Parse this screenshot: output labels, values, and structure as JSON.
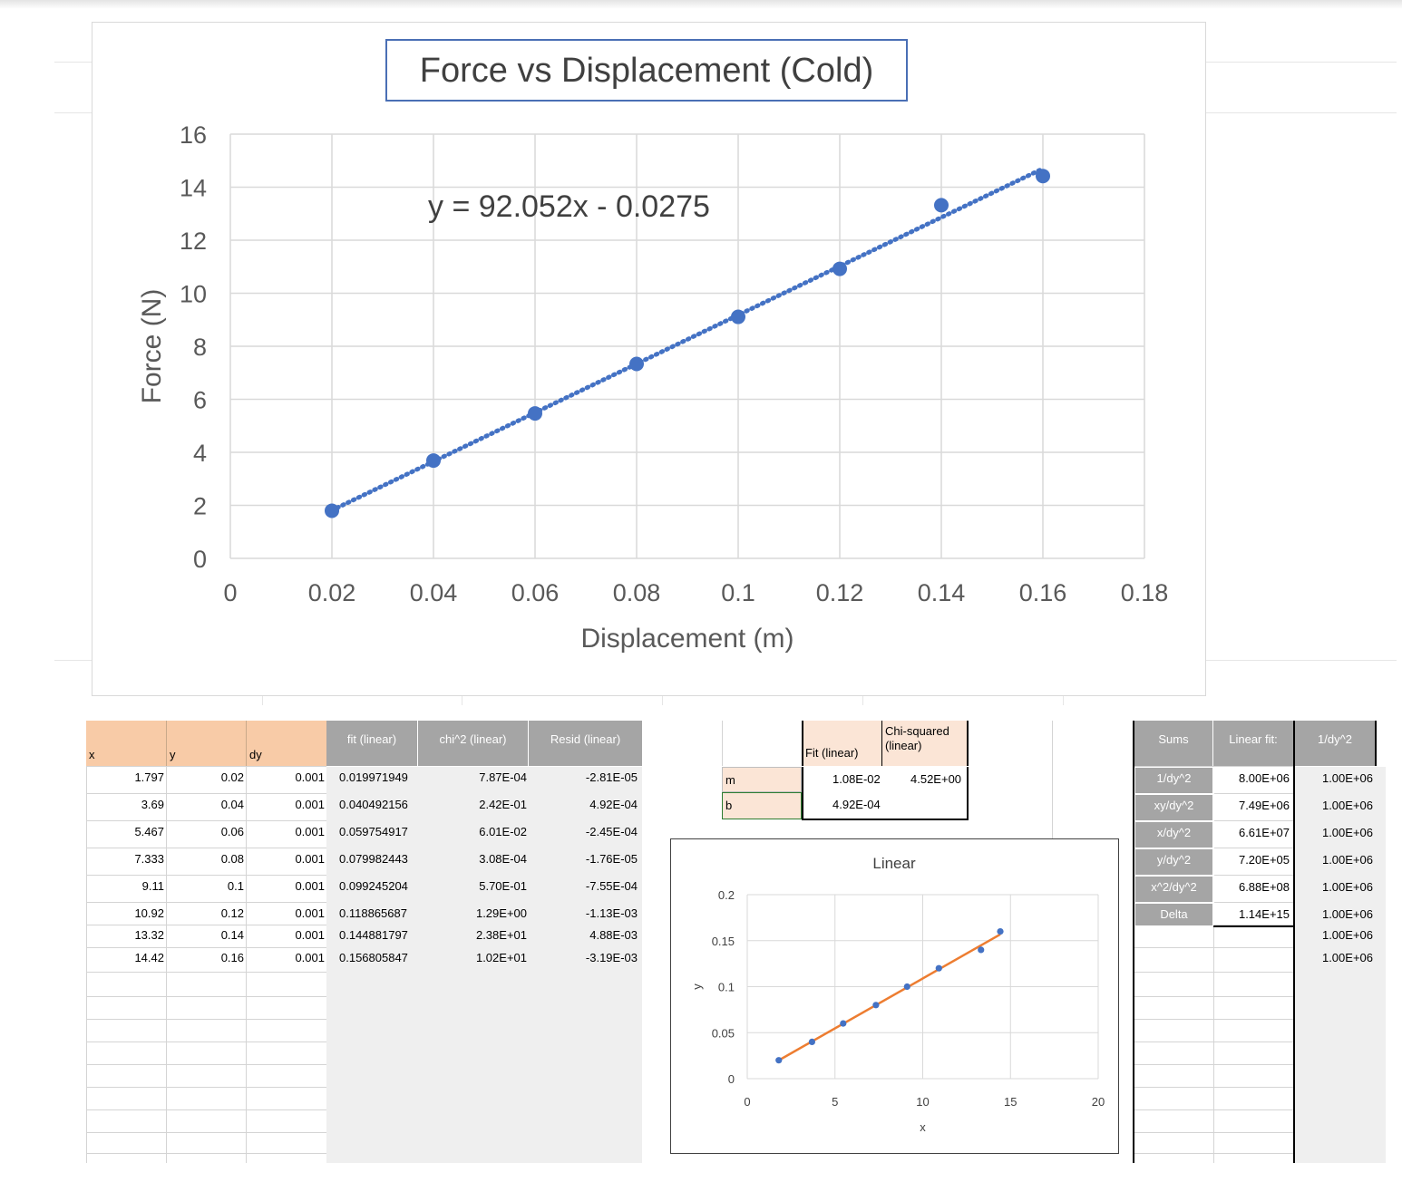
{
  "chart_data": [
    {
      "type": "scatter",
      "title": "Force vs Displacement (Cold)",
      "xlabel": "Displacement (m)",
      "ylabel": "Force (N)",
      "xlim": [
        0,
        0.18
      ],
      "ylim": [
        0,
        16
      ],
      "x_ticks": [
        "0",
        "0.02",
        "0.04",
        "0.06",
        "0.08",
        "0.1",
        "0.12",
        "0.14",
        "0.16",
        "0.18"
      ],
      "y_ticks": [
        "0",
        "2",
        "4",
        "6",
        "8",
        "10",
        "12",
        "14",
        "16"
      ],
      "grid": true,
      "trendline": {
        "style": "dotted",
        "equation": "y = 92.052x - 0.0275",
        "slope": 92.052,
        "intercept": -0.0275
      },
      "series": [
        {
          "x": [
            0.02,
            0.04,
            0.06,
            0.08,
            0.1,
            0.12,
            0.14,
            0.16
          ],
          "y": [
            1.797,
            3.69,
            5.467,
            7.333,
            9.11,
            10.92,
            13.32,
            14.42
          ],
          "color": "#4472c4"
        }
      ]
    },
    {
      "type": "scatter",
      "title": "Linear",
      "xlabel": "x",
      "ylabel": "y",
      "xlim": [
        0,
        20
      ],
      "ylim": [
        0,
        0.2
      ],
      "x_ticks": [
        "0",
        "5",
        "10",
        "15",
        "20"
      ],
      "y_ticks": [
        "0",
        "0.05",
        "0.1",
        "0.15",
        "0.2"
      ],
      "grid": true,
      "series": [
        {
          "x": [
            1.797,
            3.69,
            5.467,
            7.333,
            9.11,
            10.92,
            13.32,
            14.42
          ],
          "y": [
            0.02,
            0.04,
            0.06,
            0.08,
            0.1,
            0.12,
            0.14,
            0.16
          ],
          "color": "#4472c4"
        },
        {
          "x": [
            1.797,
            14.42
          ],
          "y": [
            0.019971949,
            0.156805847
          ],
          "color": "#ed7d31",
          "style": "line"
        }
      ]
    }
  ],
  "sheet": {
    "headers": {
      "x": "x",
      "y": "y",
      "dy": "dy",
      "fit": "fit (linear)",
      "chi2": "chi^2 (linear)",
      "resid": "Resid (linear)"
    },
    "rows": [
      [
        "1.797",
        "0.02",
        "0.001",
        "0.019971949",
        "7.87E-04",
        "-2.81E-05"
      ],
      [
        "3.69",
        "0.04",
        "0.001",
        "0.040492156",
        "2.42E-01",
        "4.92E-04"
      ],
      [
        "5.467",
        "0.06",
        "0.001",
        "0.059754917",
        "6.01E-02",
        "-2.45E-04"
      ],
      [
        "7.333",
        "0.08",
        "0.001",
        "0.079982443",
        "3.08E-04",
        "-1.76E-05"
      ],
      [
        "9.11",
        "0.1",
        "0.001",
        "0.099245204",
        "5.70E-01",
        "-7.55E-04"
      ],
      [
        "10.92",
        "0.12",
        "0.001",
        "0.118865687",
        "1.29E+00",
        "-1.13E-03"
      ],
      [
        "13.32",
        "0.14",
        "0.001",
        "0.144881797",
        "2.38E+01",
        "4.88E-03"
      ],
      [
        "14.42",
        "0.16",
        "0.001",
        "0.156805847",
        "1.02E+01",
        "-3.19E-03"
      ]
    ],
    "fit_table": {
      "col1": "Fit (linear)",
      "col2": "Chi-squared (linear)",
      "rows": [
        {
          "label": "m",
          "fit": "1.08E-02",
          "chi": "4.52E+00"
        },
        {
          "label": "b",
          "fit": "4.92E-04",
          "chi": ""
        }
      ]
    },
    "sums_table": {
      "headers": [
        "Sums",
        "Linear fit:",
        "1/dy^2"
      ],
      "rows": [
        {
          "label": "1/dy^2",
          "value": "8.00E+06",
          "inv": "1.00E+06"
        },
        {
          "label": "xy/dy^2",
          "value": "7.49E+06",
          "inv": "1.00E+06"
        },
        {
          "label": "x/dy^2",
          "value": "6.61E+07",
          "inv": "1.00E+06"
        },
        {
          "label": "y/dy^2",
          "value": "7.20E+05",
          "inv": "1.00E+06"
        },
        {
          "label": "x^2/dy^2",
          "value": "6.88E+08",
          "inv": "1.00E+06"
        },
        {
          "label": "Delta",
          "value": "1.14E+15",
          "inv": "1.00E+06"
        }
      ],
      "extra_inv": [
        "1.00E+06",
        "1.00E+06"
      ]
    }
  }
}
